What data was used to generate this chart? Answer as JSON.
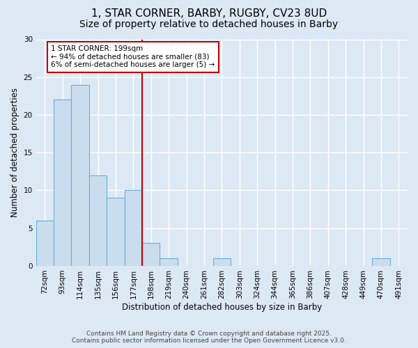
{
  "title_line1": "1, STAR CORNER, BARBY, RUGBY, CV23 8UD",
  "title_line2": "Size of property relative to detached houses in Barby",
  "xlabel": "Distribution of detached houses by size in Barby",
  "ylabel": "Number of detached properties",
  "categories": [
    "72sqm",
    "93sqm",
    "114sqm",
    "135sqm",
    "156sqm",
    "177sqm",
    "198sqm",
    "219sqm",
    "240sqm",
    "261sqm",
    "282sqm",
    "303sqm",
    "324sqm",
    "344sqm",
    "365sqm",
    "386sqm",
    "407sqm",
    "428sqm",
    "449sqm",
    "470sqm",
    "491sqm"
  ],
  "values": [
    6,
    22,
    24,
    12,
    9,
    10,
    3,
    1,
    0,
    0,
    1,
    0,
    0,
    0,
    0,
    0,
    0,
    0,
    0,
    1,
    0
  ],
  "bar_color": "#c9ddef",
  "bar_edge_color": "#6aaed6",
  "background_color": "#dce9f5",
  "grid_color": "#ffffff",
  "annotation_text": "1 STAR CORNER: 199sqm\n← 94% of detached houses are smaller (83)\n6% of semi-detached houses are larger (5) →",
  "vline_x_index": 6,
  "vline_color": "#c00000",
  "annotation_box_color": "#c00000",
  "ylim": [
    0,
    30
  ],
  "yticks": [
    0,
    5,
    10,
    15,
    20,
    25,
    30
  ],
  "footer_text": "Contains HM Land Registry data © Crown copyright and database right 2025.\nContains public sector information licensed under the Open Government Licence v3.0.",
  "title_fontsize": 11,
  "subtitle_fontsize": 10,
  "axis_label_fontsize": 8.5,
  "tick_fontsize": 7.5,
  "annotation_fontsize": 7.5,
  "footer_fontsize": 6.5
}
